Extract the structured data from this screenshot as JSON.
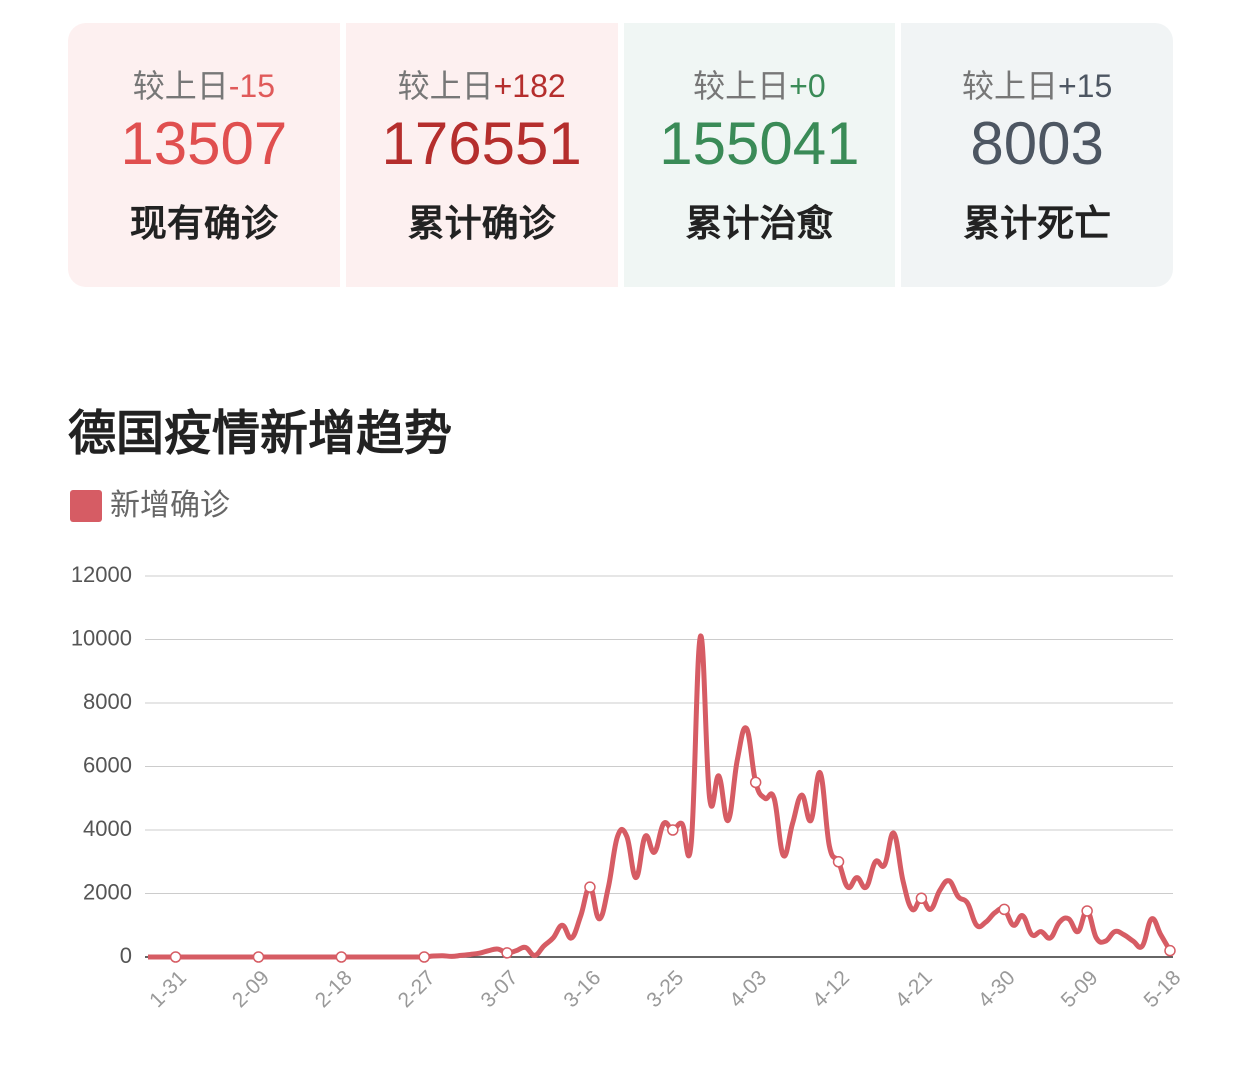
{
  "cards": [
    {
      "change_label": "较上日",
      "change": "-15",
      "value": "13507",
      "name": "现有确诊",
      "bg": "#fdf0f0",
      "value_color": "#e04f4f",
      "change_color": "#e05a5a"
    },
    {
      "change_label": "较上日",
      "change": "+182",
      "value": "176551",
      "name": "累计确诊",
      "bg": "#fdf0f0",
      "value_color": "#b52e2d",
      "change_color": "#b52e2d"
    },
    {
      "change_label": "较上日",
      "change": "+0",
      "value": "155041",
      "name": "累计治愈",
      "bg": "#f0f6f4",
      "value_color": "#3a8b57",
      "change_color": "#3a8b57"
    },
    {
      "change_label": "较上日",
      "change": "+15",
      "value": "8003",
      "name": "累计死亡",
      "bg": "#f1f4f5",
      "value_color": "#4d5662",
      "change_color": "#4d5662"
    }
  ],
  "chart_data": {
    "type": "line",
    "title": "德国疫情新增趋势",
    "categories": [
      null,
      null,
      null,
      "1-31",
      null,
      null,
      null,
      null,
      null,
      null,
      null,
      null,
      "2-09",
      null,
      null,
      null,
      null,
      null,
      null,
      null,
      null,
      "2-18",
      null,
      null,
      null,
      null,
      null,
      null,
      null,
      null,
      "2-27",
      null,
      null,
      null,
      null,
      null,
      null,
      null,
      null,
      "3-07",
      null,
      null,
      null,
      null,
      null,
      null,
      null,
      null,
      "3-16",
      null,
      null,
      null,
      null,
      null,
      null,
      null,
      null,
      "3-25",
      null,
      null,
      null,
      null,
      null,
      null,
      null,
      null,
      "4-03",
      null,
      null,
      null,
      null,
      null,
      null,
      null,
      null,
      "4-12",
      null,
      null,
      null,
      null,
      null,
      null,
      null,
      null,
      "4-21",
      null,
      null,
      null,
      null,
      null,
      null,
      null,
      null,
      "4-30",
      null,
      null,
      null,
      null,
      null,
      null,
      null,
      null,
      "5-09",
      null,
      null,
      null,
      null,
      null,
      null,
      null,
      null,
      "5-18"
    ],
    "series": [
      {
        "name": "新增确诊",
        "color": "#d65c64",
        "values": [
          0,
          0,
          0,
          0,
          0,
          0,
          0,
          0,
          0,
          0,
          0,
          0,
          0,
          0,
          0,
          0,
          0,
          0,
          0,
          0,
          0,
          0,
          0,
          0,
          0,
          0,
          0,
          0,
          0,
          0,
          0,
          30,
          40,
          20,
          50,
          80,
          120,
          200,
          250,
          130,
          200,
          300,
          50,
          350,
          600,
          1000,
          600,
          1300,
          2200,
          1200,
          2200,
          3800,
          3800,
          2500,
          3800,
          3300,
          4200,
          4000,
          4200,
          3600,
          10100,
          5000,
          5700,
          4300,
          6200,
          7200,
          5500,
          5000,
          5000,
          3200,
          4200,
          5100,
          4300,
          5800,
          3500,
          3000,
          2200,
          2500,
          2200,
          3000,
          2900,
          3900,
          2400,
          1500,
          1850,
          1500,
          2100,
          2400,
          1900,
          1700,
          1000,
          1100,
          1400,
          1500,
          1000,
          1300,
          700,
          800,
          600,
          1100,
          1200,
          800,
          1450,
          600,
          500,
          800,
          700,
          500,
          350,
          1200,
          700,
          200
        ]
      }
    ],
    "ylim": [
      0,
      12000
    ],
    "yticks": [
      0,
      2000,
      4000,
      6000,
      8000,
      10000,
      12000
    ],
    "grid": true
  }
}
